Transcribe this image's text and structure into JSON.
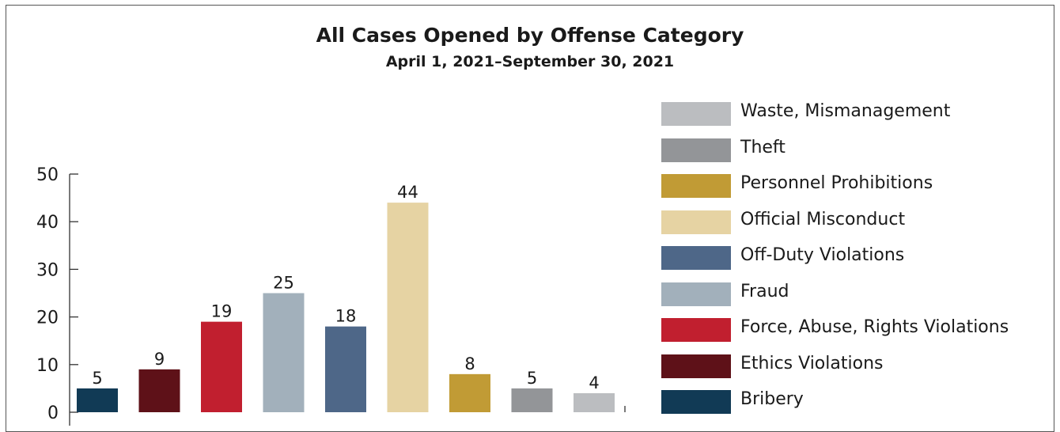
{
  "chart_data": {
    "type": "bar",
    "title": "All Cases Opened by Offense Category",
    "subtitle": "April 1, 2021–September 30, 2021",
    "xlabel": "",
    "ylabel": "",
    "ylim": [
      0,
      50
    ],
    "yticks": [
      0,
      10,
      20,
      30,
      40,
      50
    ],
    "grid": false,
    "legend_position": "right",
    "categories": [
      "Bribery",
      "Ethics Violations",
      "Force, Abuse, Rights Violations",
      "Fraud",
      "Off-Duty Violations",
      "Official Misconduct",
      "Personnel Prohibitions",
      "Theft",
      "Waste, Mismanagement"
    ],
    "values": [
      5,
      9,
      19,
      25,
      18,
      44,
      8,
      5,
      4
    ],
    "colors": [
      "#113a55",
      "#5e1118",
      "#c11f2f",
      "#a2b0bb",
      "#4e6788",
      "#e6d3a3",
      "#c19b35",
      "#939598",
      "#bbbdc0"
    ],
    "legend": [
      "Waste, Mismanagement",
      "Theft",
      "Personnel Prohibitions",
      "Official Misconduct",
      "Off-Duty Violations",
      "Fraud",
      "Force, Abuse, Rights Violations",
      "Ethics Violations",
      "Bribery"
    ],
    "legend_colors": [
      "#bbbdc0",
      "#939598",
      "#c19b35",
      "#e6d3a3",
      "#4e6788",
      "#a2b0bb",
      "#c11f2f",
      "#5e1118",
      "#113a55"
    ]
  }
}
